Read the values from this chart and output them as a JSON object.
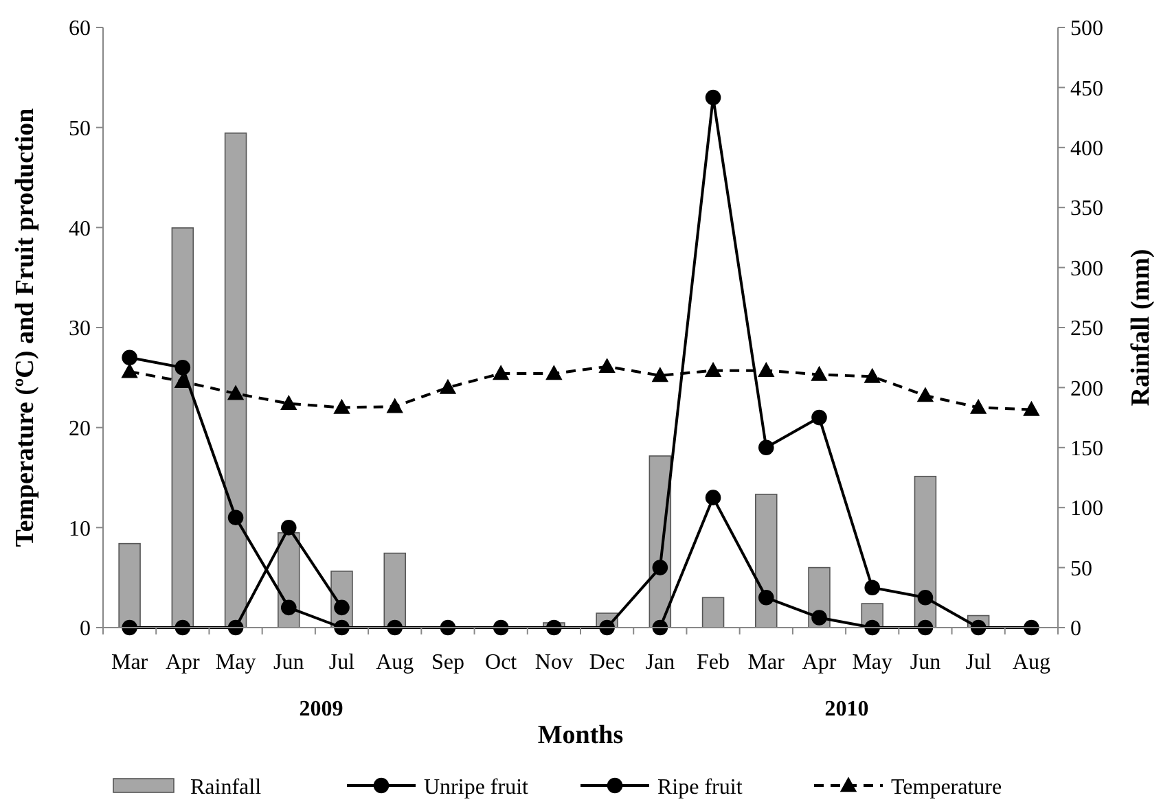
{
  "chart_data": {
    "type": "line",
    "xlabel": "Months",
    "ylabel": "Temperature (ºC) and Fruit production",
    "y2label": "Rainfall  (mm)",
    "annotations": [
      "2009",
      "2010"
    ],
    "categories": [
      "Mar",
      "Apr",
      "May",
      "Jun",
      "Jul",
      "Aug",
      "Sep",
      "Oct",
      "Nov",
      "Dec",
      "Jan",
      "Feb",
      "Mar",
      "Apr",
      "May",
      "Jun",
      "Jul",
      "Aug"
    ],
    "series": [
      {
        "name": "Rainfall",
        "type": "bar",
        "axis": "y2",
        "color": "#a6a6a6",
        "values": [
          70,
          333,
          412,
          79,
          47,
          62,
          0,
          0,
          4,
          12,
          143,
          25,
          111,
          50,
          20,
          126,
          10,
          0
        ]
      },
      {
        "name": "Unripe fruit",
        "color": "#000000",
        "marker": "circle",
        "line_style": "solid",
        "values": [
          27,
          26,
          11,
          2,
          0,
          0,
          0,
          0,
          0,
          0,
          6,
          53,
          18,
          21,
          4,
          3,
          0,
          0
        ]
      },
      {
        "name": "Ripe fruit",
        "color": "#000000",
        "marker": "circle",
        "line_style": "solid",
        "values": [
          0,
          0,
          0,
          10,
          2,
          null,
          null,
          null,
          null,
          null,
          0,
          13,
          3,
          1,
          0,
          0,
          null,
          null
        ]
      },
      {
        "name": "Temperature",
        "color": "#000000",
        "marker": "triangle",
        "line_style": "dashed",
        "values": [
          25.6,
          24.6,
          23.4,
          22.4,
          22.0,
          22.1,
          24.0,
          25.4,
          25.4,
          26.1,
          25.2,
          25.7,
          25.7,
          25.3,
          25.1,
          23.2,
          22.0,
          21.8
        ]
      }
    ],
    "ylim": [
      0,
      60
    ],
    "yticks": [
      0,
      10,
      20,
      30,
      40,
      50,
      60
    ],
    "y2lim": [
      0,
      500
    ],
    "y2ticks": [
      0,
      50,
      100,
      150,
      200,
      250,
      300,
      350,
      400,
      450,
      500
    ],
    "grid": false,
    "legend": "bottom"
  }
}
